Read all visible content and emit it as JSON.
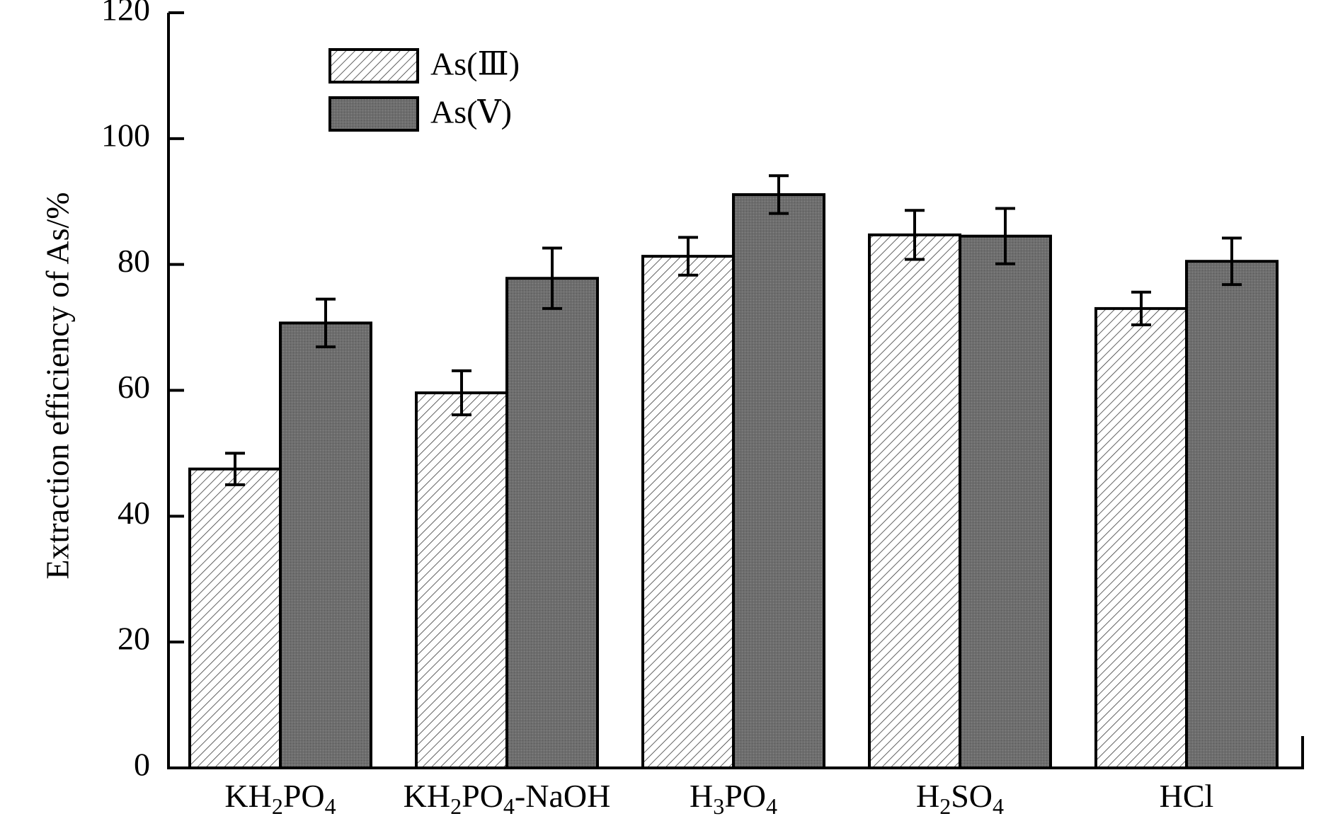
{
  "chart_data": {
    "type": "bar",
    "title": "",
    "xlabel": "",
    "ylabel": "Extraction efficiency of As/%",
    "ylim": [
      0,
      120
    ],
    "yticks": [
      "0",
      "20",
      "40",
      "60",
      "80",
      "100",
      "120"
    ],
    "grid": false,
    "legend_position": "top-left",
    "categories": [
      {
        "main": "KH",
        "sub1": "2",
        "mid": "PO",
        "sub2": "4",
        "tail": ""
      },
      {
        "main": "KH",
        "sub1": "2",
        "mid": "PO",
        "sub2": "4",
        "tail": "-NaOH"
      },
      {
        "main": "H",
        "sub1": "3",
        "mid": "PO",
        "sub2": "4",
        "tail": ""
      },
      {
        "main": "H",
        "sub1": "2",
        "mid": "SO",
        "sub2": "4",
        "tail": ""
      },
      {
        "main": "HCl",
        "sub1": "",
        "mid": "",
        "sub2": "",
        "tail": ""
      }
    ],
    "series": [
      {
        "name": "As(Ⅲ)",
        "pattern": "hatched",
        "values": [
          47.5,
          59.6,
          81.3,
          84.7,
          73.0
        ],
        "errors": [
          2.5,
          3.5,
          3.0,
          3.9,
          2.6
        ]
      },
      {
        "name": "As(Ⅴ)",
        "pattern": "dark-shaded",
        "values": [
          70.7,
          77.8,
          91.1,
          84.5,
          80.5
        ],
        "errors": [
          3.8,
          4.8,
          3.0,
          4.4,
          3.7
        ]
      }
    ]
  }
}
